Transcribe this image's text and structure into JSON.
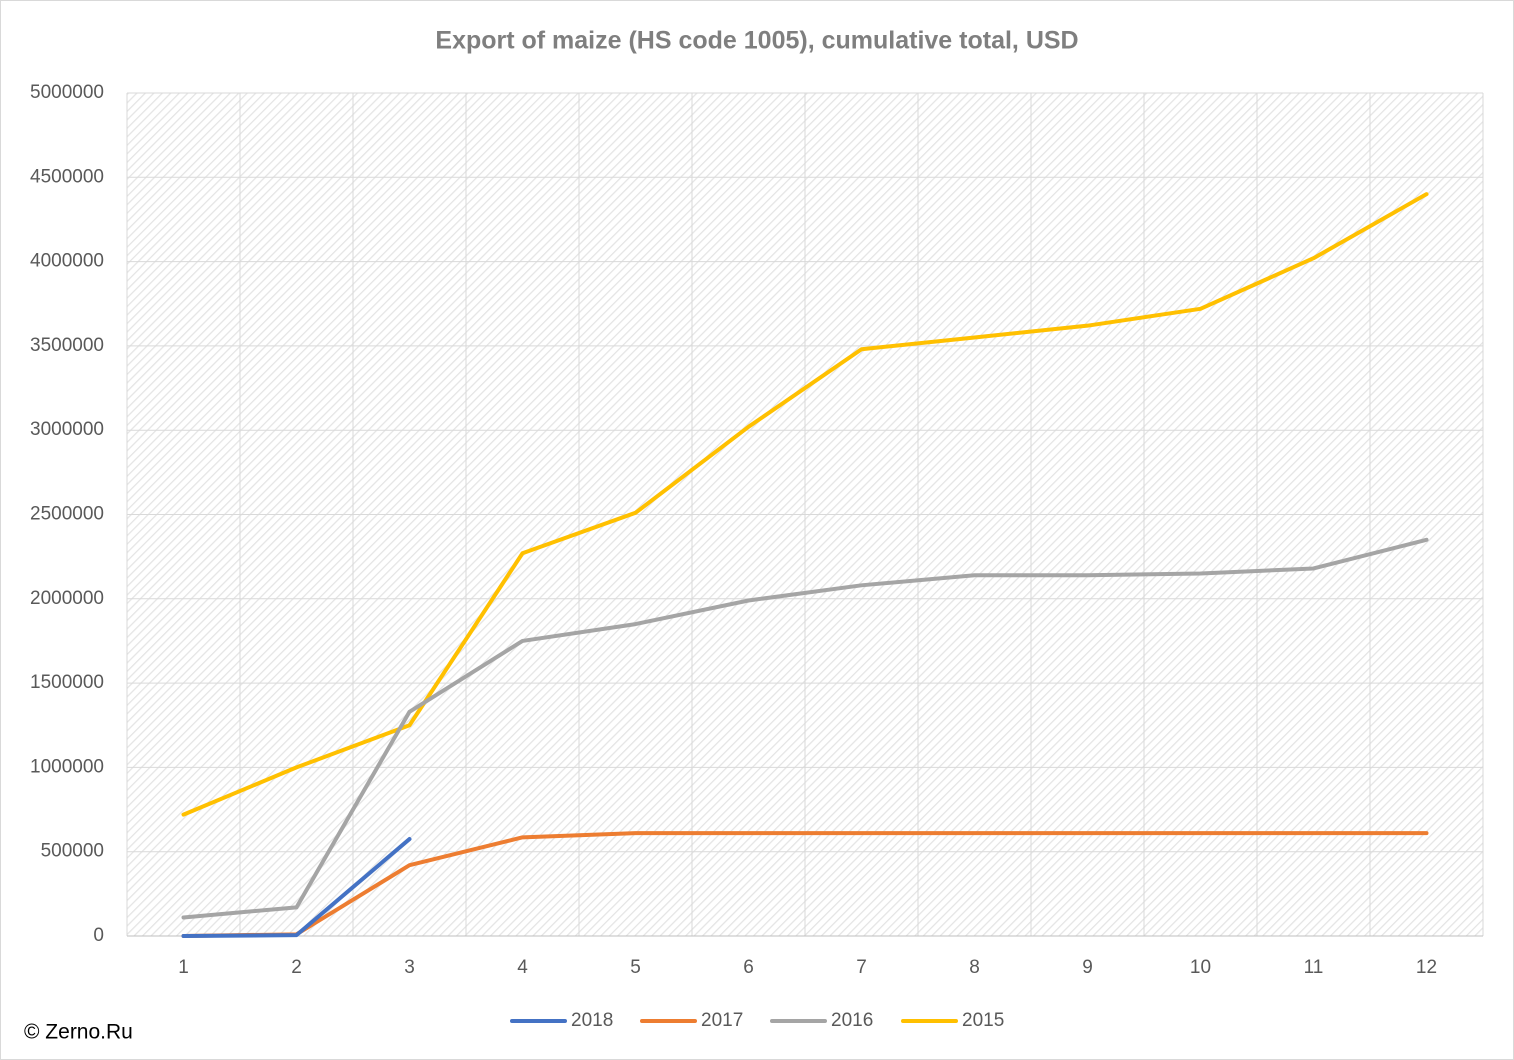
{
  "chart_data": {
    "type": "line",
    "title": "Export of maize (HS code 1005), cumulative total, USD",
    "categories": [
      "1",
      "2",
      "3",
      "4",
      "5",
      "6",
      "7",
      "8",
      "9",
      "10",
      "11",
      "12"
    ],
    "series": [
      {
        "name": "2018",
        "color": "#4472c4",
        "values": [
          0,
          5000,
          575000,
          null,
          null,
          null,
          null,
          null,
          null,
          null,
          null,
          null
        ]
      },
      {
        "name": "2017",
        "color": "#ed7d31",
        "values": [
          0,
          10000,
          420000,
          585000,
          610000,
          610000,
          610000,
          610000,
          610000,
          610000,
          610000,
          610000
        ]
      },
      {
        "name": "2016",
        "color": "#a5a5a5",
        "values": [
          110000,
          170000,
          1330000,
          1750000,
          1850000,
          1990000,
          2080000,
          2140000,
          2140000,
          2150000,
          2180000,
          2350000
        ]
      },
      {
        "name": "2015",
        "color": "#ffc000",
        "values": [
          720000,
          1000000,
          1250000,
          2270000,
          2510000,
          3020000,
          3480000,
          3550000,
          3620000,
          3720000,
          4020000,
          4400000
        ]
      }
    ],
    "ylim": [
      0,
      5000000
    ],
    "yticks": [
      0,
      500000,
      1000000,
      1500000,
      2000000,
      2500000,
      3000000,
      3500000,
      4000000,
      4500000,
      5000000
    ],
    "grid": true,
    "legend": "bottom",
    "annotation": "© Zerno.Ru"
  }
}
